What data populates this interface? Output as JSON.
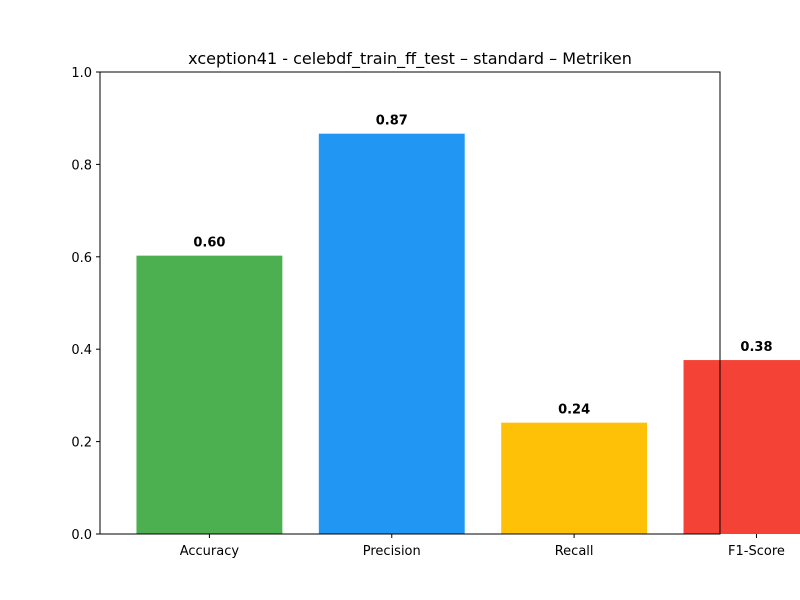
{
  "chart_data": {
    "type": "bar",
    "title": "xception41 - celebdf_train_ff_test – standard – Metriken",
    "xlabel": "",
    "ylabel": "",
    "categories": [
      "Accuracy",
      "Precision",
      "Recall",
      "F1-Score"
    ],
    "values": [
      0.6025,
      0.8665,
      0.241,
      0.3765
    ],
    "value_labels": [
      "0.60",
      "0.87",
      "0.24",
      "0.38"
    ],
    "colors": [
      "#4caf50",
      "#2196f3",
      "#ffc107",
      "#f44336"
    ],
    "ylim": [
      0,
      1.0
    ],
    "yticks": [
      0.0,
      0.2,
      0.4,
      0.6,
      0.8,
      1.0
    ],
    "ytick_labels": [
      "0.0",
      "0.2",
      "0.4",
      "0.6",
      "0.8",
      "1.0"
    ],
    "grid": false,
    "legend": "none"
  }
}
